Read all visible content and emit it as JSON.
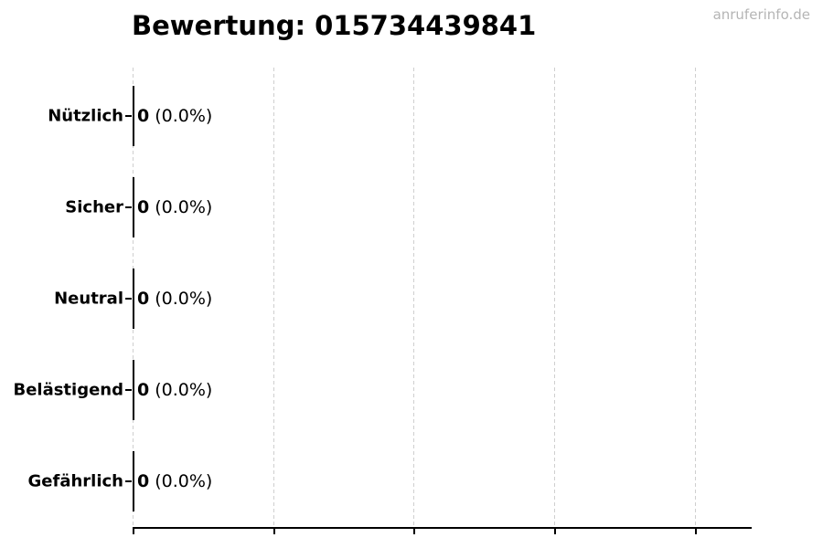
{
  "header": {
    "watermark": "anruferinfo.de"
  },
  "chart_data": {
    "type": "bar",
    "orientation": "horizontal",
    "title": "Bewertung: 015734439841",
    "categories": [
      "Nützlich",
      "Sicher",
      "Neutral",
      "Belästigend",
      "Gefährlich"
    ],
    "values": [
      0,
      0,
      0,
      0,
      0
    ],
    "percentages": [
      0.0,
      0.0,
      0.0,
      0.0,
      0.0
    ],
    "percent_labels": [
      "(0.0%)",
      "(0.0%)",
      "(0.0%)",
      "(0.0%)",
      "(0.0%)"
    ],
    "xlabel": "",
    "ylabel": "",
    "x_tick_labels": [],
    "grid": "vertical-dashed",
    "legend": "none",
    "colors": {
      "text": "#000000",
      "axis": "#000000",
      "gridline": "#cfcfcf",
      "watermark": "#b5b5b5",
      "background": "#ffffff"
    }
  }
}
